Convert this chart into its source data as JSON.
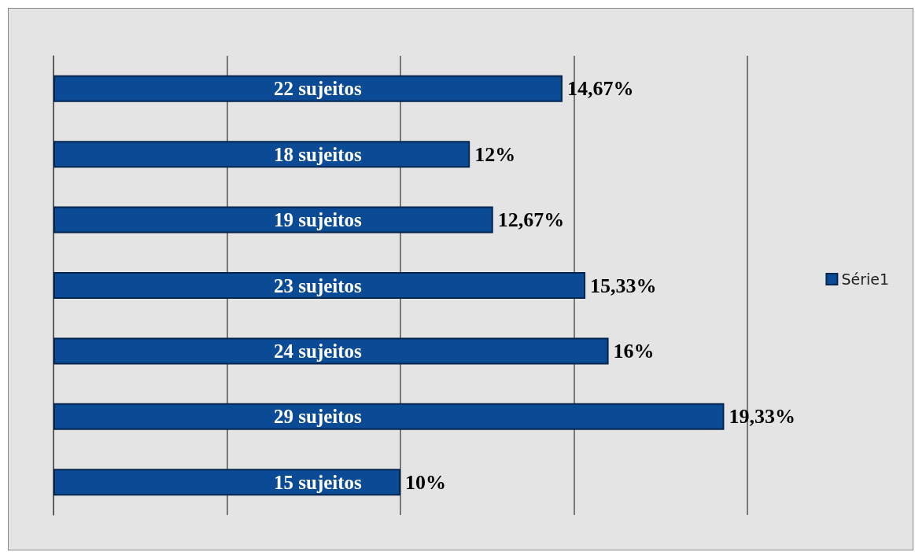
{
  "chart_data": {
    "type": "bar",
    "orientation": "horizontal",
    "categories": [
      null,
      null,
      null,
      null,
      null,
      null,
      null
    ],
    "series": [
      {
        "name": "Série1",
        "color": "#0b4a94",
        "values": [
          14.67,
          12,
          12.67,
          15.33,
          16,
          19.33,
          10
        ],
        "value_labels": [
          "14,67%",
          "12%",
          "12,67%",
          "15,33%",
          "16%",
          "19,33%",
          "10%"
        ]
      }
    ],
    "annotations": [
      "22 sujeitos",
      "18 sujeitos",
      "19 sujeitos",
      "23 sujeitos",
      "24 sujeitos",
      "29 sujeitos",
      "15 sujeitos"
    ],
    "xlim": [
      0,
      20
    ],
    "xticks": [
      {
        "value": 0,
        "label": null
      },
      {
        "value": 5,
        "label": null
      },
      {
        "value": 10,
        "label": null
      },
      {
        "value": 15,
        "label": null
      },
      {
        "value": 20,
        "label": null
      }
    ],
    "grid": "x",
    "legend": "right"
  }
}
